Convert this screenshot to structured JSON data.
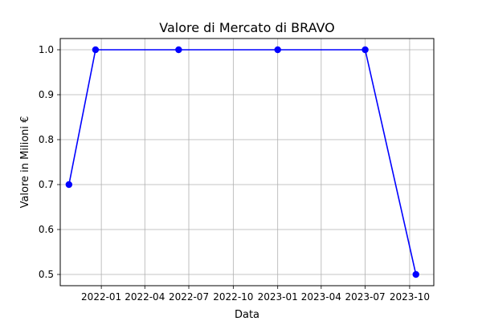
{
  "chart_data": {
    "type": "line",
    "title": "Valore di Mercato di BRAVO",
    "xlabel": "Data",
    "ylabel": "Valore in Milioni €",
    "x_ticks": [
      {
        "date": "2022-01-01",
        "label": "2022-01"
      },
      {
        "date": "2022-04-01",
        "label": "2022-04"
      },
      {
        "date": "2022-07-01",
        "label": "2022-07"
      },
      {
        "date": "2022-10-01",
        "label": "2022-10"
      },
      {
        "date": "2023-01-01",
        "label": "2023-01"
      },
      {
        "date": "2023-04-01",
        "label": "2023-04"
      },
      {
        "date": "2023-07-01",
        "label": "2023-07"
      },
      {
        "date": "2023-10-01",
        "label": "2023-10"
      }
    ],
    "y_ticks": [
      0.5,
      0.6,
      0.7,
      0.8,
      0.9,
      1.0
    ],
    "y_tick_labels": [
      "0.5",
      "0.6",
      "0.7",
      "0.8",
      "0.9",
      "1.0"
    ],
    "xlim": [
      "2021-10-08",
      "2023-11-20"
    ],
    "ylim": [
      0.475,
      1.025
    ],
    "grid": true,
    "series": [
      {
        "color": "#0000ff",
        "marker": "circle",
        "points": [
          {
            "x": "2021-10-26",
            "y": 0.7
          },
          {
            "x": "2021-12-20",
            "y": 1.0
          },
          {
            "x": "2022-06-10",
            "y": 1.0
          },
          {
            "x": "2023-01-01",
            "y": 1.0
          },
          {
            "x": "2023-07-01",
            "y": 1.0
          },
          {
            "x": "2023-10-14",
            "y": 0.5
          }
        ]
      }
    ]
  }
}
